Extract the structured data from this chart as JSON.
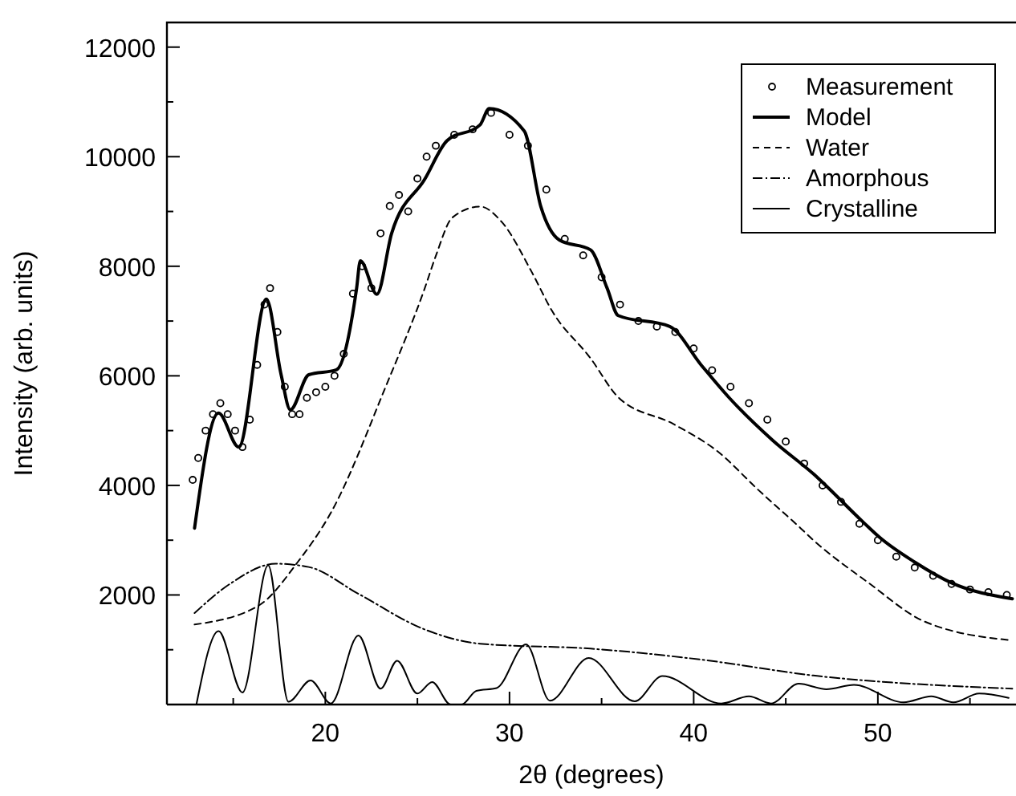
{
  "chart_data": {
    "type": "line",
    "xlabel": "2θ (degrees)",
    "ylabel": "Intensity (arb. units)",
    "xlim": [
      11.4,
      57.5
    ],
    "ylim": [
      0,
      12450
    ],
    "xticks": [
      {
        "value": 15,
        "label": null
      },
      20,
      {
        "value": 25,
        "label": null
      },
      30,
      {
        "value": 35,
        "label": null
      },
      40,
      {
        "value": 45,
        "label": null
      },
      50,
      {
        "value": 55,
        "label": null
      }
    ],
    "yticks": [
      {
        "value": 1000,
        "label": null
      },
      2000,
      {
        "value": 3000,
        "label": null
      },
      4000,
      {
        "value": 5000,
        "label": null
      },
      6000,
      {
        "value": 7000,
        "label": null
      },
      8000,
      {
        "value": 9000,
        "label": null
      },
      10000,
      {
        "value": 11000,
        "label": null
      },
      12000
    ],
    "legend": "top right",
    "grid": false,
    "series": [
      {
        "name": "Measurement",
        "type": "scatter",
        "marker": "circle",
        "color": "#000000",
        "x": [
          12.8,
          13.1,
          13.5,
          13.9,
          14.3,
          14.7,
          15.1,
          15.5,
          15.9,
          16.3,
          16.7,
          17.0,
          17.4,
          17.8,
          18.2,
          18.6,
          19.0,
          19.5,
          20.0,
          20.5,
          21.0,
          21.5,
          22.0,
          22.5,
          23.0,
          23.5,
          24.0,
          24.5,
          25.0,
          25.5,
          26.0,
          27.0,
          28.0,
          29.0,
          30.0,
          31.0,
          32.0,
          33.0,
          34.0,
          35.0,
          36.0,
          37.0,
          38.0,
          39.0,
          40.0,
          41.0,
          42.0,
          43.0,
          44.0,
          45.0,
          46.0,
          47.0,
          48.0,
          49.0,
          50.0,
          51.0,
          52.0,
          53.0,
          54.0,
          55.0,
          56.0,
          57.0
        ],
        "values": [
          4100,
          4500,
          5000,
          5300,
          5500,
          5300,
          5000,
          4700,
          5200,
          6200,
          7300,
          7600,
          6800,
          5800,
          5300,
          5300,
          5600,
          5700,
          5800,
          6000,
          6400,
          7500,
          8000,
          7600,
          8600,
          9100,
          9300,
          9000,
          9600,
          10000,
          10200,
          10400,
          10500,
          10800,
          10400,
          10200,
          9400,
          8500,
          8200,
          7800,
          7300,
          7000,
          6900,
          6800,
          6500,
          6100,
          5800,
          5500,
          5200,
          4800,
          4400,
          4000,
          3700,
          3300,
          3000,
          2700,
          2500,
          2350,
          2200,
          2100,
          2050,
          2000
        ]
      },
      {
        "name": "Model",
        "color": "#000000",
        "line_style": "solid",
        "x": [
          12.9,
          14.2,
          15.3,
          16.8,
          17.6,
          18.1,
          19.1,
          20.6,
          21.7,
          21.9,
          22.8,
          23.6,
          25.4,
          26.6,
          28.4,
          28.9,
          30.8,
          31.7,
          32.7,
          34.4,
          35.3,
          35.9,
          38.7,
          40.4,
          41.9,
          44.3,
          46.5,
          49.2,
          50.1,
          52.0,
          54.0,
          57.3
        ],
        "values": [
          3220,
          5320,
          4700,
          7400,
          6020,
          5380,
          6020,
          6110,
          7600,
          8100,
          7490,
          8600,
          9590,
          10290,
          10580,
          10880,
          10470,
          9090,
          8480,
          8300,
          7600,
          7100,
          6900,
          6200,
          5610,
          4820,
          4210,
          3330,
          3050,
          2600,
          2220,
          1930
        ]
      },
      {
        "name": "Water",
        "color": "#000000",
        "line_style": "dashed",
        "x": [
          12.9,
          16.4,
          18.5,
          20.3,
          23.3,
          25.4,
          26.0,
          26.9,
          28.4,
          29.6,
          31.2,
          32.3,
          34.4,
          35.9,
          38.9,
          41.3,
          43.5,
          45.8,
          46.5,
          49.5,
          52.5,
          57.3
        ],
        "values": [
          1460,
          1810,
          2600,
          3500,
          5820,
          7600,
          8190,
          8890,
          9090,
          8800,
          7900,
          7190,
          6320,
          5610,
          5120,
          4620,
          3920,
          3220,
          3000,
          2220,
          1520,
          1170
        ]
      },
      {
        "name": "Amorphous",
        "color": "#000000",
        "line_style": "dashdot",
        "x": [
          12.9,
          14.9,
          17.3,
          19.1,
          21.8,
          25.4,
          28.4,
          34.4,
          40.4,
          46.5,
          57.3
        ],
        "values": [
          1670,
          2220,
          2570,
          2510,
          2020,
          1370,
          1110,
          1020,
          820,
          530,
          290
        ]
      },
      {
        "name": "Crystalline",
        "color": "#000000",
        "line_style": "solid",
        "x": [
          13.0,
          14.2,
          15.5,
          16.9,
          18.0,
          19.2,
          20.3,
          21.8,
          23.0,
          23.9,
          25.0,
          25.8,
          26.8,
          27.4,
          28.2,
          29.3,
          30.9,
          32.2,
          34.3,
          36.8,
          38.3,
          41.5,
          43.0,
          44.2,
          45.7,
          47.2,
          48.7,
          51.4,
          52.9,
          54.1,
          55.5,
          57.1
        ],
        "values": [
          0,
          1340,
          220,
          2540,
          50,
          440,
          20,
          1260,
          290,
          800,
          200,
          410,
          0,
          0,
          250,
          300,
          1100,
          70,
          850,
          60,
          520,
          20,
          150,
          20,
          380,
          280,
          360,
          40,
          150,
          40,
          200,
          120
        ]
      }
    ]
  }
}
